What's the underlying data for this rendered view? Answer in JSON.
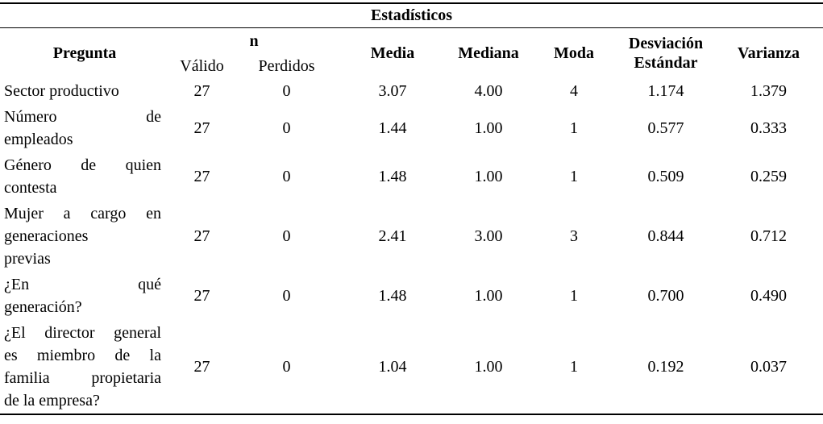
{
  "title": "Estadísticos",
  "columns": {
    "pregunta": "Pregunta",
    "n": "n",
    "valido": "Válido",
    "perdidos": "Perdidos",
    "media": "Media",
    "mediana": "Mediana",
    "moda": "Moda",
    "desviacion_estandar": "Desviación Estándar",
    "varianza": "Varianza"
  },
  "rows": [
    {
      "pregunta": "Sector productivo",
      "pregunta_lines": [
        "Sector productivo"
      ],
      "valido": "27",
      "perdidos": "0",
      "media": "3.07",
      "mediana": "4.00",
      "moda": "4",
      "desviacion_estandar": "1.174",
      "varianza": "1.379"
    },
    {
      "pregunta": "Número de empleados",
      "pregunta_lines": [
        "Número de",
        "empleados"
      ],
      "valido": "27",
      "perdidos": "0",
      "media": "1.44",
      "mediana": "1.00",
      "moda": "1",
      "desviacion_estandar": "0.577",
      "varianza": "0.333"
    },
    {
      "pregunta": "Género de quien contesta",
      "pregunta_lines": [
        "Género de quien",
        "contesta"
      ],
      "valido": "27",
      "perdidos": "0",
      "media": "1.48",
      "mediana": "1.00",
      "moda": "1",
      "desviacion_estandar": "0.509",
      "varianza": "0.259"
    },
    {
      "pregunta": "Mujer a cargo en generaciones previas",
      "pregunta_lines": [
        "Mujer a cargo en",
        "generaciones",
        "previas"
      ],
      "valido": "27",
      "perdidos": "0",
      "media": "2.41",
      "mediana": "3.00",
      "moda": "3",
      "desviacion_estandar": "0.844",
      "varianza": "0.712"
    },
    {
      "pregunta": "¿En qué generación?",
      "pregunta_lines": [
        "¿En qué",
        "generación?"
      ],
      "valido": "27",
      "perdidos": "0",
      "media": "1.48",
      "mediana": "1.00",
      "moda": "1",
      "desviacion_estandar": "0.700",
      "varianza": "0.490"
    },
    {
      "pregunta": "¿El director general es miembro de la familia propietaria de la empresa?",
      "pregunta_lines": [
        "¿El director general",
        "es miembro de la",
        "familia propietaria",
        "de la empresa?"
      ],
      "valido": "27",
      "perdidos": "0",
      "media": "1.04",
      "mediana": "1.00",
      "moda": "1",
      "desviacion_estandar": "0.192",
      "varianza": "0.037"
    }
  ],
  "colors": {
    "text": "#000000",
    "background": "#ffffff",
    "rule": "#000000"
  }
}
